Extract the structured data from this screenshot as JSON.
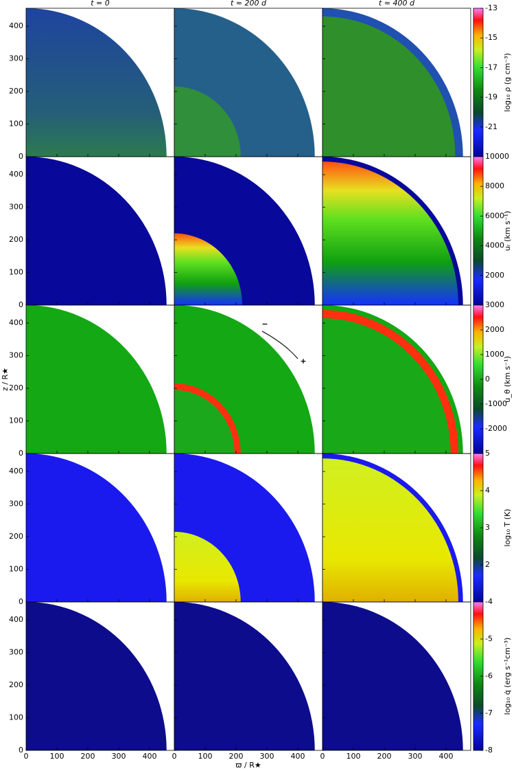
{
  "chart_data": {
    "type": "heatmap-grid",
    "panel_titles": [
      "t = 0",
      "t ≈ 200 d",
      "t ≈ 400 d"
    ],
    "xlabel": "ϖ / R★",
    "ylabel": "z / R★",
    "xlim": [
      0,
      480
    ],
    "ylim": [
      0,
      455
    ],
    "xticks": [
      0,
      100,
      200,
      300,
      400
    ],
    "yticks": [
      0,
      100,
      200,
      300,
      400
    ],
    "annotations": [
      "−",
      "+"
    ],
    "rows": [
      {
        "label": "log₁₀ ρ (g cm⁻³)",
        "clim": [
          -23,
          -13
        ],
        "cticks": [
          -13,
          -15,
          -17,
          -19,
          -21
        ]
      },
      {
        "label": "uᵣ (km s⁻¹)",
        "clim": [
          0,
          10000
        ],
        "cticks": [
          10000,
          8000,
          6000,
          4000,
          2000
        ]
      },
      {
        "label": "u_θ (km s⁻¹)",
        "clim": [
          -3000,
          3000
        ],
        "cticks": [
          3000,
          2000,
          1000,
          0,
          -1000,
          -2000
        ]
      },
      {
        "label": "log₁₀ T (K)",
        "clim": [
          1,
          5
        ],
        "cticks": [
          5,
          4,
          3,
          2
        ]
      },
      {
        "label": "log₁₀ q̇ (erg s⁻¹cm⁻³)",
        "clim": [
          -8,
          -4
        ],
        "cticks": [
          -4,
          -5,
          -6,
          -7,
          -8
        ]
      }
    ]
  }
}
